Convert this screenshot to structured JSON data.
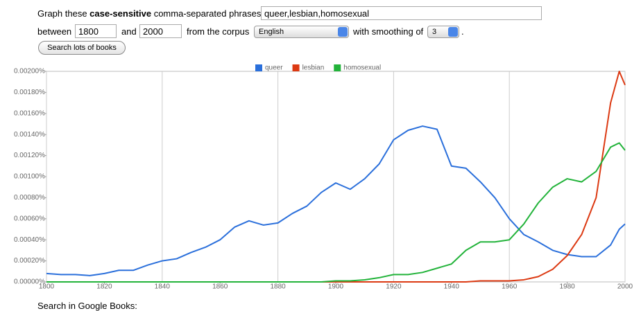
{
  "form": {
    "prompt_prefix": "Graph these",
    "prompt_bold": "case-sensitive",
    "prompt_suffix": "comma-separated phrases:",
    "phrases": "queer,lesbian,homosexual",
    "between": "between",
    "start": "1800",
    "and": "and",
    "end": "2000",
    "corpus_label": "from the corpus",
    "corpus": "English",
    "smoothing_label": "with smoothing of",
    "smoothing": "3",
    "period": ".",
    "button": "Search lots of books"
  },
  "chart_data": {
    "type": "line",
    "x": [
      1800,
      1805,
      1810,
      1815,
      1820,
      1825,
      1830,
      1835,
      1840,
      1845,
      1850,
      1855,
      1860,
      1865,
      1870,
      1875,
      1880,
      1885,
      1890,
      1895,
      1900,
      1905,
      1910,
      1915,
      1920,
      1925,
      1930,
      1935,
      1940,
      1945,
      1950,
      1955,
      1960,
      1965,
      1970,
      1975,
      1980,
      1985,
      1990,
      1995,
      1998,
      2000
    ],
    "series": [
      {
        "name": "queer",
        "color": "#2a6fdb",
        "values": [
          8e-05,
          7e-05,
          7e-05,
          6e-05,
          8e-05,
          0.00011,
          0.00011,
          0.00016,
          0.0002,
          0.00022,
          0.00028,
          0.00033,
          0.0004,
          0.00052,
          0.00058,
          0.00054,
          0.00056,
          0.00065,
          0.00072,
          0.00085,
          0.00094,
          0.00088,
          0.00098,
          0.00112,
          0.00135,
          0.00144,
          0.00148,
          0.00145,
          0.0011,
          0.00108,
          0.00095,
          0.0008,
          0.0006,
          0.00045,
          0.00038,
          0.0003,
          0.00026,
          0.00024,
          0.00024,
          0.00035,
          0.0005,
          0.00055
        ]
      },
      {
        "name": "lesbian",
        "color": "#dc3912",
        "values": [
          0,
          0,
          0,
          0,
          0,
          0,
          0,
          0,
          0,
          0,
          0,
          0,
          0,
          0,
          0,
          0,
          0,
          0,
          0,
          0,
          0,
          0,
          0,
          0,
          0,
          0,
          0,
          0,
          0,
          0,
          1e-05,
          1e-05,
          1e-05,
          2e-05,
          5e-05,
          0.00012,
          0.00025,
          0.00045,
          0.0008,
          0.0017,
          0.002,
          0.00187
        ]
      },
      {
        "name": "homosexual",
        "color": "#22b33a",
        "values": [
          0,
          0,
          0,
          0,
          0,
          0,
          0,
          0,
          0,
          0,
          0,
          0,
          0,
          0,
          0,
          0,
          0,
          0,
          0,
          0,
          1e-05,
          1e-05,
          2e-05,
          4e-05,
          7e-05,
          7e-05,
          9e-05,
          0.00013,
          0.00017,
          0.0003,
          0.00038,
          0.00038,
          0.0004,
          0.00055,
          0.00075,
          0.0009,
          0.00098,
          0.00095,
          0.00105,
          0.00128,
          0.00132,
          0.00125
        ]
      }
    ],
    "xlim": [
      1800,
      2000
    ],
    "xticks": [
      1800,
      1820,
      1840,
      1860,
      1880,
      1900,
      1920,
      1940,
      1960,
      1980,
      2000
    ],
    "ylim": [
      0,
      0.002
    ],
    "yticks": [
      {
        "value": 0,
        "label": "0.00000%"
      },
      {
        "value": 0.0002,
        "label": "0.00020%"
      },
      {
        "value": 0.0004,
        "label": "0.00040%"
      },
      {
        "value": 0.0006,
        "label": "0.00060%"
      },
      {
        "value": 0.0008,
        "label": "0.00080%"
      },
      {
        "value": 0.001,
        "label": "0.00100%"
      },
      {
        "value": 0.0012,
        "label": "0.00120%"
      },
      {
        "value": 0.0014,
        "label": "0.00140%"
      },
      {
        "value": 0.0016,
        "label": "0.00160%"
      },
      {
        "value": 0.0018,
        "label": "0.00180%"
      },
      {
        "value": 0.002,
        "label": "0.00200%"
      }
    ],
    "grid": true,
    "legend": "top"
  },
  "footer": "Search in Google Books:"
}
